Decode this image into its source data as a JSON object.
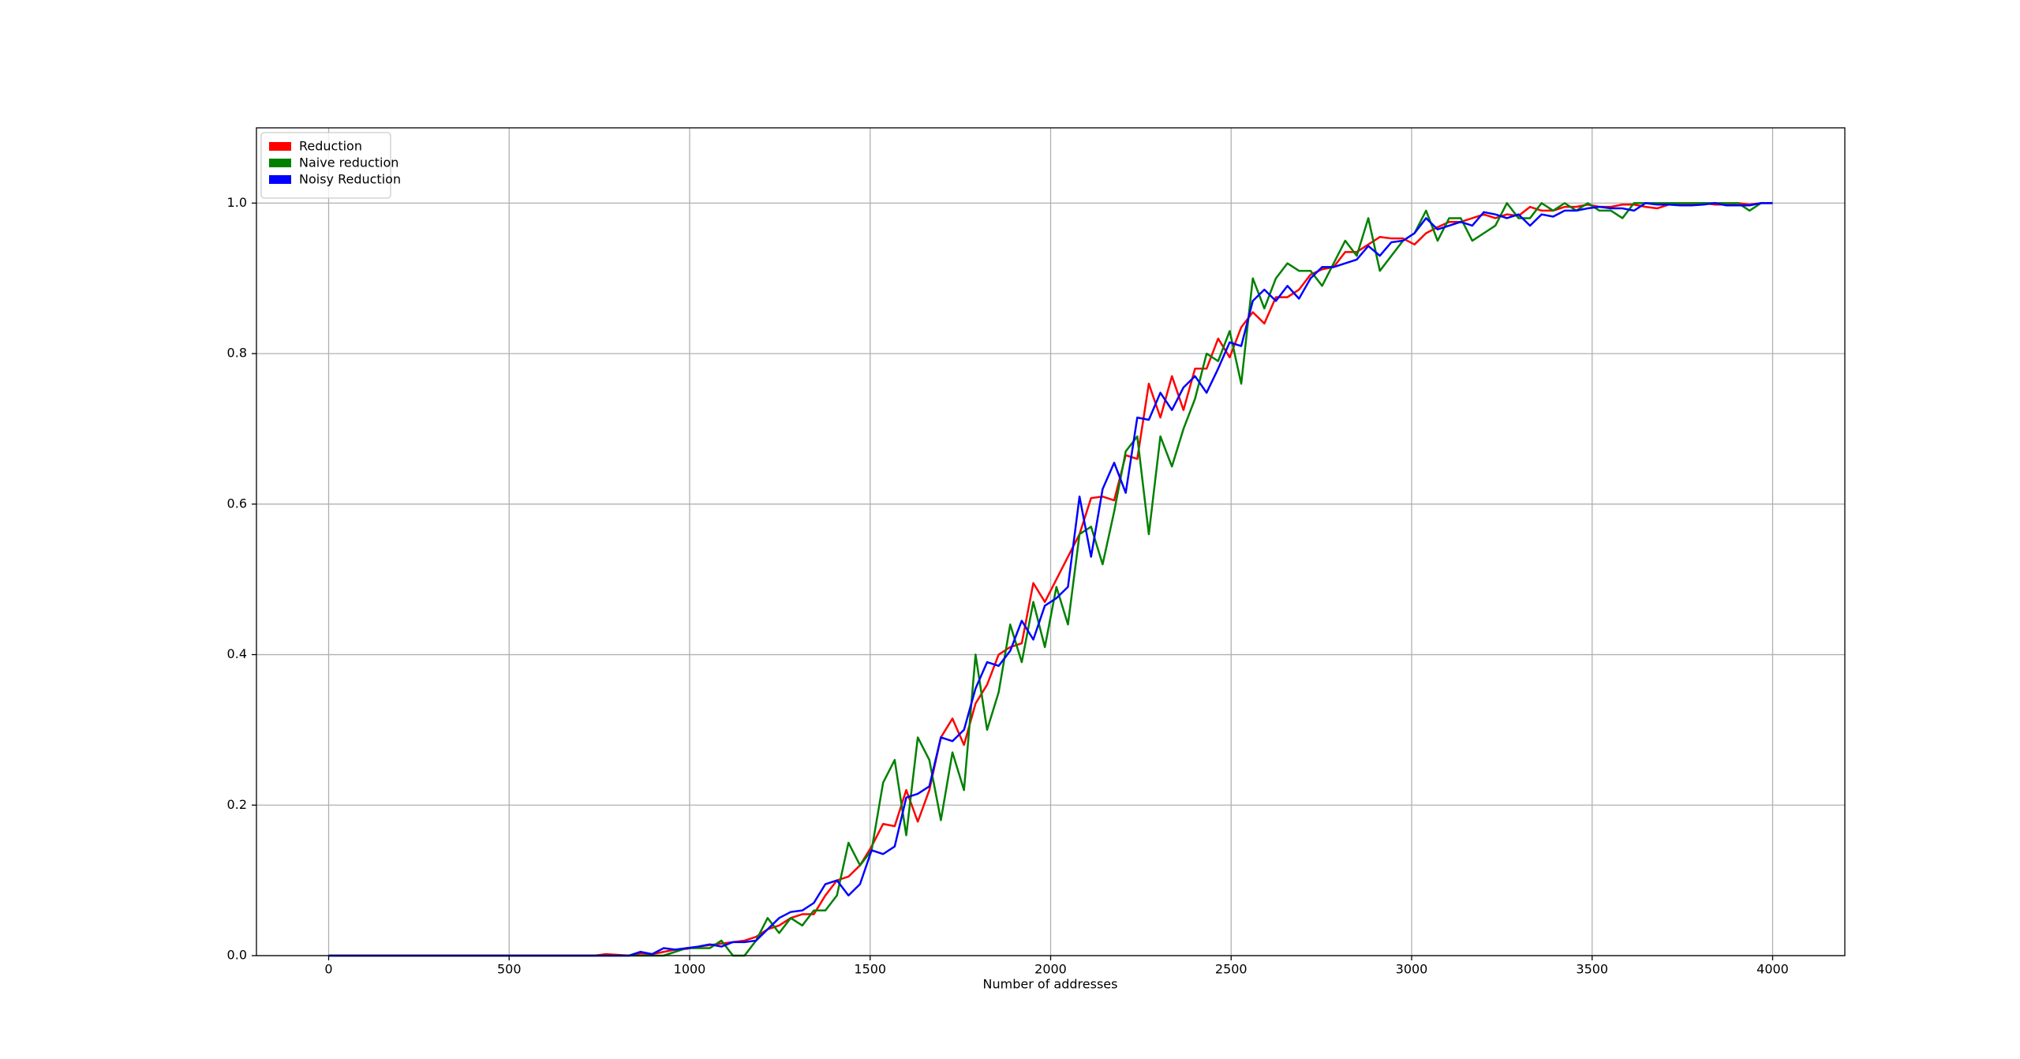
{
  "chart_data": {
    "type": "line",
    "x_label": "Number of addresses",
    "x": [
      0,
      32,
      64,
      96,
      128,
      160,
      192,
      224,
      256,
      288,
      320,
      352,
      384,
      416,
      448,
      480,
      512,
      544,
      576,
      608,
      640,
      672,
      704,
      736,
      768,
      800,
      832,
      864,
      896,
      928,
      960,
      992,
      1024,
      1056,
      1088,
      1120,
      1152,
      1184,
      1216,
      1248,
      1280,
      1312,
      1344,
      1376,
      1408,
      1440,
      1472,
      1504,
      1536,
      1568,
      1600,
      1632,
      1664,
      1696,
      1728,
      1760,
      1792,
      1824,
      1856,
      1888,
      1920,
      1952,
      1984,
      2016,
      2048,
      2080,
      2112,
      2144,
      2176,
      2208,
      2240,
      2272,
      2304,
      2336,
      2368,
      2400,
      2432,
      2464,
      2496,
      2528,
      2560,
      2592,
      2624,
      2656,
      2688,
      2720,
      2752,
      2784,
      2816,
      2848,
      2880,
      2912,
      2944,
      2976,
      3008,
      3040,
      3072,
      3104,
      3136,
      3168,
      3200,
      3232,
      3264,
      3296,
      3328,
      3360,
      3392,
      3424,
      3456,
      3488,
      3520,
      3552,
      3584,
      3616,
      3648,
      3680,
      3712,
      3744,
      3776,
      3808,
      3840,
      3872,
      3904,
      3936,
      3968,
      4000
    ],
    "series": [
      {
        "name": "Reduction",
        "color": "#ff0000",
        "values": [
          0,
          0,
          0,
          0,
          0,
          0,
          0,
          0,
          0,
          0,
          0,
          0,
          0,
          0,
          0,
          0,
          0,
          0,
          0,
          0,
          0,
          0,
          0,
          0,
          0.002,
          0.001,
          0,
          0.003,
          0.002,
          0.005,
          0.008,
          0.009,
          0.012,
          0.014,
          0.016,
          0.018,
          0.02,
          0.025,
          0.035,
          0.04,
          0.05,
          0.055,
          0.055,
          0.08,
          0.1,
          0.105,
          0.12,
          0.145,
          0.175,
          0.172,
          0.22,
          0.178,
          0.22,
          0.29,
          0.315,
          0.28,
          0.335,
          0.36,
          0.4,
          0.41,
          0.415,
          0.495,
          0.47,
          0.5,
          0.53,
          0.56,
          0.608,
          0.61,
          0.605,
          0.665,
          0.66,
          0.76,
          0.715,
          0.77,
          0.725,
          0.78,
          0.78,
          0.82,
          0.795,
          0.835,
          0.855,
          0.84,
          0.875,
          0.875,
          0.885,
          0.905,
          0.912,
          0.915,
          0.935,
          0.935,
          0.945,
          0.955,
          0.953,
          0.953,
          0.945,
          0.96,
          0.968,
          0.975,
          0.975,
          0.98,
          0.985,
          0.98,
          0.985,
          0.983,
          0.995,
          0.99,
          0.99,
          0.995,
          0.995,
          0.998,
          0.995,
          0.995,
          0.998,
          0.998,
          0.995,
          0.993,
          0.998,
          0.998,
          0.998,
          1,
          0.998,
          0.998,
          1,
          0.998,
          1,
          1
        ]
      },
      {
        "name": "Naive reduction",
        "color": "#008000",
        "values": [
          0,
          0,
          0,
          0,
          0,
          0,
          0,
          0,
          0,
          0,
          0,
          0,
          0,
          0,
          0,
          0,
          0,
          0,
          0,
          0,
          0,
          0,
          0,
          0,
          0,
          0,
          0,
          0,
          0,
          0,
          0.005,
          0.01,
          0.01,
          0.01,
          0.02,
          0,
          0,
          0.02,
          0.05,
          0.03,
          0.05,
          0.04,
          0.06,
          0.06,
          0.08,
          0.15,
          0.12,
          0.14,
          0.23,
          0.26,
          0.16,
          0.29,
          0.26,
          0.18,
          0.27,
          0.22,
          0.4,
          0.3,
          0.35,
          0.44,
          0.39,
          0.47,
          0.41,
          0.49,
          0.44,
          0.56,
          0.57,
          0.52,
          0.59,
          0.67,
          0.69,
          0.56,
          0.69,
          0.65,
          0.7,
          0.74,
          0.8,
          0.79,
          0.83,
          0.76,
          0.9,
          0.86,
          0.9,
          0.92,
          0.91,
          0.91,
          0.89,
          0.92,
          0.95,
          0.93,
          0.98,
          0.91,
          0.93,
          0.95,
          0.96,
          0.99,
          0.95,
          0.98,
          0.98,
          0.95,
          0.96,
          0.97,
          1,
          0.98,
          0.98,
          1,
          0.99,
          1,
          0.99,
          1,
          0.99,
          0.99,
          0.98,
          1,
          1,
          1,
          1,
          1,
          1,
          1,
          1,
          1,
          1,
          0.99,
          1,
          1
        ]
      },
      {
        "name": "Noisy Reduction",
        "color": "#0000ff",
        "values": [
          0,
          0,
          0,
          0,
          0,
          0,
          0,
          0,
          0,
          0,
          0,
          0,
          0,
          0,
          0,
          0,
          0,
          0,
          0,
          0,
          0,
          0,
          0,
          0,
          0,
          0,
          0,
          0.005,
          0.002,
          0.01,
          0.008,
          0.01,
          0.012,
          0.015,
          0.012,
          0.018,
          0.018,
          0.02,
          0.035,
          0.05,
          0.058,
          0.06,
          0.07,
          0.095,
          0.1,
          0.08,
          0.095,
          0.14,
          0.135,
          0.145,
          0.21,
          0.215,
          0.225,
          0.29,
          0.285,
          0.3,
          0.355,
          0.39,
          0.385,
          0.405,
          0.445,
          0.42,
          0.465,
          0.475,
          0.49,
          0.61,
          0.53,
          0.62,
          0.655,
          0.615,
          0.715,
          0.712,
          0.748,
          0.725,
          0.755,
          0.77,
          0.748,
          0.78,
          0.815,
          0.81,
          0.87,
          0.885,
          0.87,
          0.89,
          0.873,
          0.9,
          0.915,
          0.915,
          0.92,
          0.925,
          0.943,
          0.93,
          0.948,
          0.95,
          0.96,
          0.98,
          0.965,
          0.97,
          0.975,
          0.97,
          0.988,
          0.985,
          0.98,
          0.985,
          0.97,
          0.985,
          0.982,
          0.99,
          0.99,
          0.993,
          0.995,
          0.993,
          0.993,
          0.99,
          1,
          0.998,
          0.998,
          0.997,
          0.997,
          0.998,
          1,
          0.997,
          0.997,
          0.997,
          1,
          1
        ]
      }
    ],
    "xlim": [
      -200,
      4200
    ],
    "xticks": [
      0,
      500,
      1000,
      1500,
      2000,
      2500,
      3000,
      3500,
      4000
    ],
    "ylim": [
      0,
      1.1
    ],
    "yticks": [
      {
        "value": 0,
        "label": "0.0"
      },
      0.2,
      0.4,
      0.6,
      0.8,
      {
        "value": 1,
        "label": "1.0"
      }
    ],
    "grid": true,
    "legend": "upper-left"
  }
}
